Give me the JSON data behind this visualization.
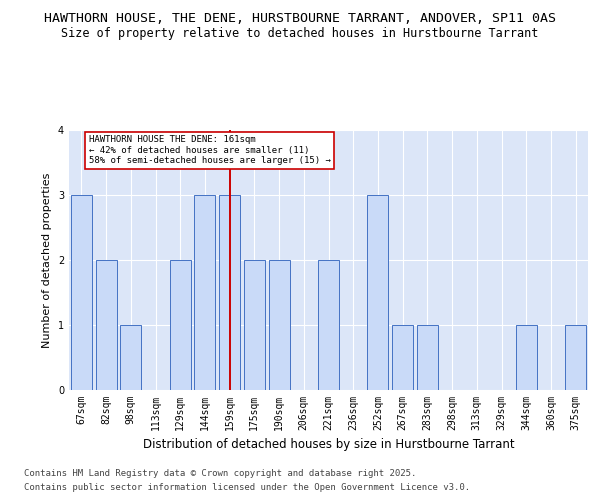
{
  "title1": "HAWTHORN HOUSE, THE DENE, HURSTBOURNE TARRANT, ANDOVER, SP11 0AS",
  "title2": "Size of property relative to detached houses in Hurstbourne Tarrant",
  "xlabel": "Distribution of detached houses by size in Hurstbourne Tarrant",
  "ylabel": "Number of detached properties",
  "categories": [
    "67sqm",
    "82sqm",
    "98sqm",
    "113sqm",
    "129sqm",
    "144sqm",
    "159sqm",
    "175sqm",
    "190sqm",
    "206sqm",
    "221sqm",
    "236sqm",
    "252sqm",
    "267sqm",
    "283sqm",
    "298sqm",
    "313sqm",
    "329sqm",
    "344sqm",
    "360sqm",
    "375sqm"
  ],
  "values": [
    3,
    2,
    1,
    0,
    2,
    3,
    3,
    2,
    2,
    0,
    2,
    0,
    3,
    1,
    1,
    0,
    0,
    0,
    1,
    0,
    1
  ],
  "bar_color": "#c9daf8",
  "bar_edge_color": "#4472c4",
  "vline_x": 6,
  "vline_color": "#cc0000",
  "annotation_title": "HAWTHORN HOUSE THE DENE: 161sqm",
  "annotation_line1": "← 42% of detached houses are smaller (11)",
  "annotation_line2": "58% of semi-detached houses are larger (15) →",
  "annotation_box_color": "#ffffff",
  "annotation_box_edge": "#cc0000",
  "footer1": "Contains HM Land Registry data © Crown copyright and database right 2025.",
  "footer2": "Contains public sector information licensed under the Open Government Licence v3.0.",
  "ylim": [
    0,
    4
  ],
  "yticks": [
    0,
    1,
    2,
    3,
    4
  ],
  "bg_color": "#dce6f8",
  "fig_bg": "#ffffff",
  "title1_fontsize": 9.5,
  "title2_fontsize": 8.5,
  "xlabel_fontsize": 8.5,
  "ylabel_fontsize": 8,
  "tick_fontsize": 7,
  "footer_fontsize": 6.5
}
